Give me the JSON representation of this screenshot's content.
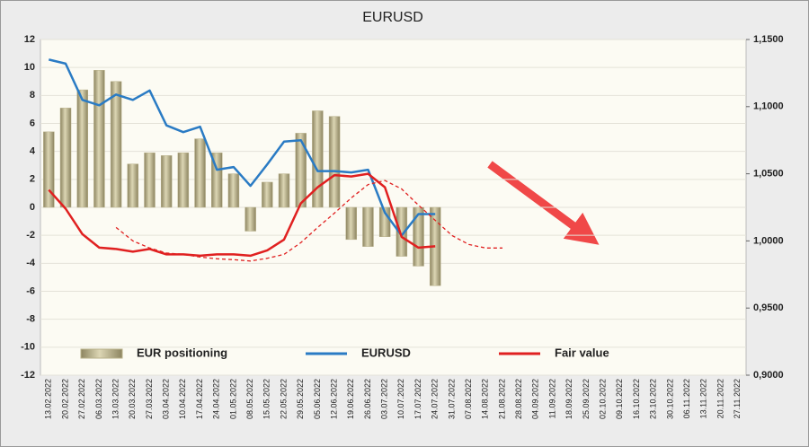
{
  "chart_data": {
    "type": "bar-line",
    "title": "EURUSD",
    "categories": [
      "13.02.2022",
      "20.02.2022",
      "27.02.2022",
      "06.03.2022",
      "13.03.2022",
      "20.03.2022",
      "27.03.2022",
      "03.04.2022",
      "10.04.2022",
      "17.04.2022",
      "24.04.2022",
      "01.05.2022",
      "08.05.2022",
      "15.05.2022",
      "22.05.2022",
      "29.05.2022",
      "05.06.2022",
      "12.06.2022",
      "19.06.2022",
      "26.06.2022",
      "03.07.2022",
      "10.07.2022",
      "17.07.2022",
      "24.07.2022",
      "31.07.2022",
      "07.08.2022",
      "14.08.2022",
      "21.08.2022",
      "28.08.2022",
      "04.09.2022",
      "11.09.2022",
      "18.09.2022",
      "25.09.2022",
      "02.10.2022",
      "09.10.2022",
      "16.10.2022",
      "23.10.2022",
      "30.10.2022",
      "06.11.2022",
      "13.11.2022",
      "20.11.2022",
      "27.11.2022"
    ],
    "series": [
      {
        "name": "EUR positioning",
        "type": "bar",
        "color": "#b8b08a",
        "values": [
          5.4,
          7.1,
          8.4,
          9.8,
          9.0,
          3.1,
          3.9,
          3.7,
          3.9,
          4.9,
          3.9,
          2.4,
          -1.7,
          1.8,
          2.4,
          5.3,
          6.9,
          6.5,
          -2.3,
          -2.8,
          -2.1,
          -3.5,
          -4.2,
          -5.6,
          null,
          null,
          null,
          null,
          null,
          null,
          null,
          null,
          null,
          null,
          null,
          null,
          null,
          null,
          null,
          null,
          null,
          null
        ]
      },
      {
        "name": "EURUSD",
        "type": "line",
        "axis": "y2",
        "color": "#2a7bc4",
        "values": [
          1.135,
          1.132,
          1.105,
          1.101,
          1.109,
          1.105,
          1.112,
          1.086,
          1.081,
          1.085,
          1.053,
          1.055,
          1.041,
          1.057,
          1.074,
          1.075,
          1.052,
          1.052,
          1.051,
          1.053,
          1.021,
          1.004,
          1.02,
          1.02,
          null,
          null,
          null,
          null,
          null,
          null,
          null,
          null,
          null,
          null,
          null,
          null,
          null,
          null,
          null,
          null,
          null,
          null
        ]
      },
      {
        "name": "Fair value",
        "type": "line",
        "axis": "y2",
        "color": "#e02020",
        "values": [
          1.038,
          1.024,
          1.005,
          0.995,
          0.994,
          0.992,
          0.994,
          0.99,
          0.99,
          0.989,
          0.99,
          0.99,
          0.989,
          0.993,
          1.001,
          1.028,
          1.04,
          1.049,
          1.048,
          1.05,
          1.04,
          1.003,
          0.995,
          0.996,
          null,
          null,
          null,
          null,
          null,
          null,
          null,
          null,
          null,
          null,
          null,
          null,
          null,
          null,
          null,
          null,
          null,
          null
        ]
      },
      {
        "type": "line",
        "axis": "y2",
        "style": "dashed",
        "color": "#e02020",
        "values": [
          null,
          null,
          null,
          null,
          1.01,
          1.0,
          0.9947,
          0.991,
          0.99,
          0.988,
          0.9867,
          0.986,
          0.985,
          0.987,
          0.99,
          0.9987,
          1.01,
          1.0207,
          1.032,
          1.042,
          1.045,
          1.0387,
          1.0267,
          1.0153,
          1.004,
          0.9973,
          0.9947,
          0.9947,
          null,
          null,
          null,
          null,
          null,
          null,
          null,
          null,
          null,
          null,
          null,
          null,
          null,
          null
        ]
      }
    ],
    "ylim": [
      -12,
      12
    ],
    "yticks": [
      -12,
      -10,
      -8,
      -6,
      -4,
      -2,
      0,
      2,
      4,
      6,
      8,
      10,
      12
    ],
    "y2lim": [
      0.9,
      1.15
    ],
    "y2ticks": [
      {
        "value": 0.9,
        "label": "0,9000"
      },
      {
        "value": 0.95,
        "label": "0,9500"
      },
      {
        "value": 1.0,
        "label": "1,0000"
      },
      {
        "value": 1.05,
        "label": "1,0500"
      },
      {
        "value": 1.1,
        "label": "1,1000"
      },
      {
        "value": 1.15,
        "label": "1,1500"
      }
    ],
    "grid": true
  }
}
